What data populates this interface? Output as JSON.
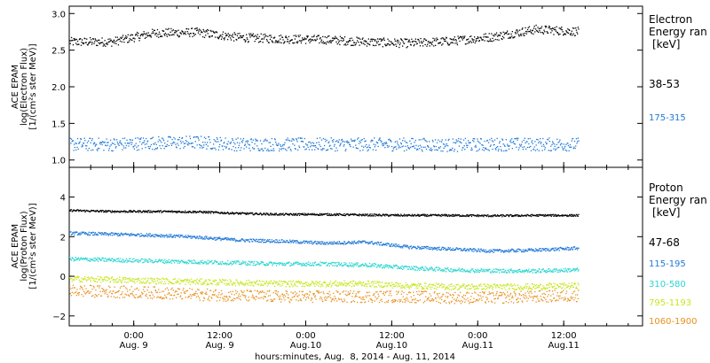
{
  "colors": {
    "black": "#000000",
    "blue": "#1f78d8",
    "cyan": "#2ad6d0",
    "yellow": "#c8e61e",
    "orange": "#e8901e"
  },
  "chart_data": [
    {
      "type": "scatter",
      "panel": "electron",
      "ylabel_lines": [
        "ACE EPAM",
        "log(Electron Flux)",
        "[1/(cm²s ster MeV)]"
      ],
      "ylim": [
        0.9,
        3.1
      ],
      "yticks": [
        1.0,
        1.5,
        2.0,
        2.5,
        3.0
      ],
      "ytick_labels": [
        "1.0",
        "1.5",
        "2.0",
        "2.5",
        "3.0"
      ],
      "legend_title": [
        "Electron",
        "Energy ran",
        "[keV]"
      ],
      "series": [
        {
          "name": "38-53",
          "color": "#000000",
          "level": [
            2.62,
            2.62,
            2.74,
            2.75,
            2.68,
            2.66,
            2.65,
            2.62,
            2.6,
            2.63,
            2.69,
            2.79,
            2.76
          ],
          "spread": 0.06
        },
        {
          "name": "175-315",
          "color": "#1f78d8",
          "level": [
            1.22,
            1.22,
            1.24,
            1.25,
            1.22,
            1.22,
            1.22,
            1.22,
            1.22,
            1.21,
            1.22,
            1.22,
            1.22
          ],
          "spread": 0.09
        }
      ]
    },
    {
      "type": "scatter",
      "panel": "proton",
      "ylabel_lines": [
        "ACE EPAM",
        "log(Proton Flux)",
        "[1/(cm²s ster MeV)]"
      ],
      "ylim": [
        -2.5,
        5.5
      ],
      "yticks": [
        -2,
        0,
        2,
        4
      ],
      "ytick_labels": [
        "−2",
        "0",
        "2",
        "4"
      ],
      "legend_title": [
        "Proton",
        "Energy ran",
        "[keV]"
      ],
      "series": [
        {
          "name": "47-68",
          "color": "#000000",
          "level": [
            3.35,
            3.3,
            3.3,
            3.28,
            3.2,
            3.15,
            3.15,
            3.12,
            3.1,
            3.1,
            3.08,
            3.1,
            3.1
          ],
          "spread": 0.05
        },
        {
          "name": "115-195",
          "color": "#1f78d8",
          "level": [
            2.2,
            2.15,
            2.1,
            2.0,
            1.85,
            1.8,
            1.7,
            1.75,
            1.5,
            1.4,
            1.3,
            1.35,
            1.45
          ],
          "spread": 0.08
        },
        {
          "name": "310-580",
          "color": "#2ad6d0",
          "level": [
            0.9,
            0.85,
            0.8,
            0.75,
            0.7,
            0.65,
            0.65,
            0.6,
            0.45,
            0.35,
            0.3,
            0.3,
            0.35
          ],
          "spread": 0.1
        },
        {
          "name": "795-1193",
          "color": "#c8e61e",
          "level": [
            -0.1,
            -0.15,
            -0.2,
            -0.25,
            -0.3,
            -0.35,
            -0.35,
            -0.35,
            -0.45,
            -0.5,
            -0.5,
            -0.5,
            -0.45
          ],
          "spread": 0.15
        },
        {
          "name": "1060-1900",
          "color": "#e8901e",
          "level": [
            -0.7,
            -0.75,
            -0.8,
            -0.9,
            -0.95,
            -1.0,
            -1.0,
            -1.0,
            -1.0,
            -1.05,
            -1.05,
            -1.0,
            -0.95
          ],
          "spread": 0.3
        }
      ]
    }
  ],
  "x_axis": {
    "ticks": [
      {
        "hour": 24,
        "line1": "0:00",
        "line2": "Aug. 9"
      },
      {
        "hour": 36,
        "line1": "12:00",
        "line2": "Aug. 9"
      },
      {
        "hour": 48,
        "line1": "0:00",
        "line2": "Aug.10"
      },
      {
        "hour": 60,
        "line1": "12:00",
        "line2": "Aug.10"
      },
      {
        "hour": 72,
        "line1": "0:00",
        "line2": "Aug.11"
      },
      {
        "hour": 84,
        "line1": "12:00",
        "line2": "Aug.11"
      }
    ],
    "range_hours": [
      15,
      95
    ],
    "data_range_hours": [
      15,
      86
    ],
    "title": "hours:minutes, Aug.  8, 2014 - Aug. 11, 2014"
  }
}
